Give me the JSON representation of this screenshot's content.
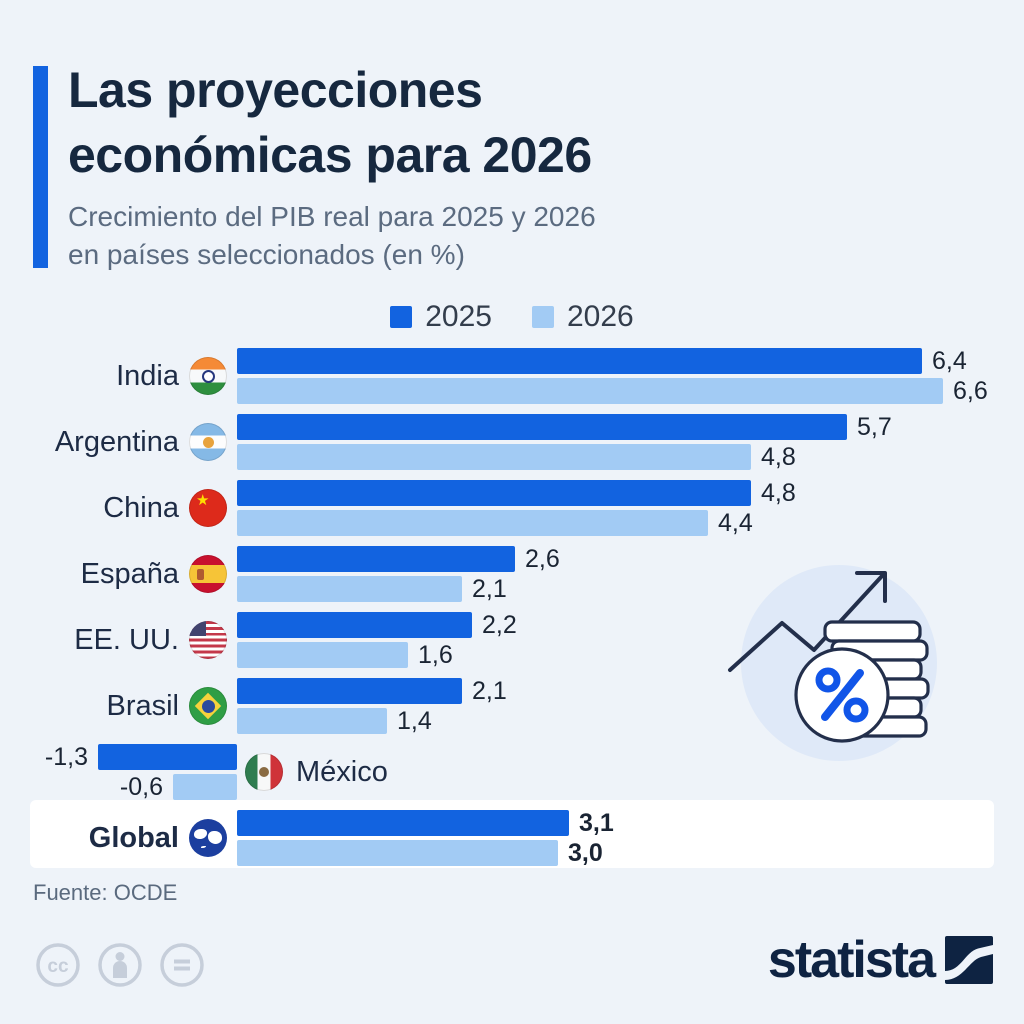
{
  "header": {
    "title_line1": "Las proyecciones",
    "title_line2": "económicas para 2026",
    "subtitle_line1": "Crecimiento del PIB real para 2025 y 2026",
    "subtitle_line2": "en países seleccionados (en %)"
  },
  "legend": {
    "items": [
      {
        "label": "2025",
        "color": "#1263e0"
      },
      {
        "label": "2026",
        "color": "#a2cbf4"
      }
    ]
  },
  "chart_data": {
    "type": "bar",
    "orientation": "horizontal",
    "unit": "%",
    "title": "Las proyecciones económicas para 2026",
    "subtitle": "Crecimiento del PIB real para 2025 y 2026 en países seleccionados (en %)",
    "legend_position": "top-center",
    "series_names": [
      "2025",
      "2026"
    ],
    "categories": [
      "India",
      "Argentina",
      "China",
      "España",
      "EE. UU.",
      "Brasil",
      "México",
      "Global"
    ],
    "rows": [
      {
        "id": "india",
        "country": "India",
        "flag": "india",
        "values": [
          6.4,
          6.6
        ],
        "labels": [
          "6,4",
          "6,6"
        ],
        "negative": false,
        "highlight": false
      },
      {
        "id": "argentina",
        "country": "Argentina",
        "flag": "argentina",
        "values": [
          5.7,
          4.8
        ],
        "labels": [
          "5,7",
          "4,8"
        ],
        "negative": false,
        "highlight": false
      },
      {
        "id": "china",
        "country": "China",
        "flag": "china",
        "values": [
          4.8,
          4.4
        ],
        "labels": [
          "4,8",
          "4,4"
        ],
        "negative": false,
        "highlight": false
      },
      {
        "id": "espana",
        "country": "España",
        "flag": "espana",
        "values": [
          2.6,
          2.1
        ],
        "labels": [
          "2,6",
          "2,1"
        ],
        "negative": false,
        "highlight": false
      },
      {
        "id": "eeuu",
        "country": "EE. UU.",
        "flag": "eeuu",
        "values": [
          2.2,
          1.6
        ],
        "labels": [
          "2,2",
          "1,6"
        ],
        "negative": false,
        "highlight": false
      },
      {
        "id": "brasil",
        "country": "Brasil",
        "flag": "brasil",
        "values": [
          2.1,
          1.4
        ],
        "labels": [
          "2,1",
          "1,4"
        ],
        "negative": false,
        "highlight": false
      },
      {
        "id": "mexico",
        "country": "México",
        "flag": "mexico",
        "values": [
          -1.3,
          -0.6
        ],
        "labels": [
          "-1,3",
          "-0,6"
        ],
        "negative": true,
        "highlight": false
      },
      {
        "id": "global",
        "country": "Global",
        "flag": "globe",
        "values": [
          3.1,
          3.0
        ],
        "labels": [
          "3,1",
          "3,0"
        ],
        "negative": false,
        "highlight": true
      }
    ],
    "colors": {
      "2025": "#1263e0",
      "2026": "#a2cbf4"
    },
    "grid": false,
    "value_labels": true
  },
  "footer": {
    "source": "Fuente: OCDE"
  },
  "branding": {
    "logo_text": "statista"
  },
  "colors": {
    "background": "#eef3f9",
    "title": "#16283f",
    "subtitle": "#5b6b80",
    "accent_bar": "#1263e0",
    "series_2025": "#1263e0",
    "series_2026": "#a2cbf4",
    "highlight_band": "#ffffff",
    "logo_navy": "#0e2342",
    "cc_gray": "#c6ceda"
  }
}
